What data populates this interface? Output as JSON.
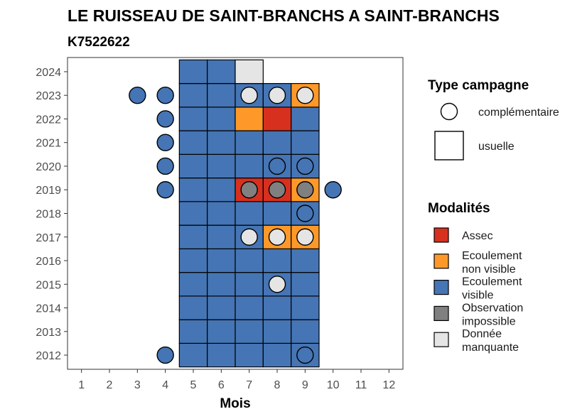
{
  "chart_data": {
    "type": "heatmap",
    "title": "LE RUISSEAU DE SAINT-BRANCHS A SAINT-BRANCHS",
    "subtitle": "K7522622",
    "xlabel": "Mois",
    "ylabel": "",
    "x_ticks": [
      1,
      2,
      3,
      4,
      5,
      6,
      7,
      8,
      9,
      10,
      11,
      12
    ],
    "y_ticks": [
      2012,
      2013,
      2014,
      2015,
      2016,
      2017,
      2018,
      2019,
      2020,
      2021,
      2022,
      2023,
      2024
    ],
    "xlim": [
      0.5,
      12.5
    ],
    "ylim": [
      2011.4,
      2024.6
    ],
    "grid": false,
    "legend_placement": "right",
    "modalites": [
      {
        "key": "assec",
        "label_lines": [
          "Assec"
        ],
        "color": "#d7301f"
      },
      {
        "key": "ecoul_nv",
        "label_lines": [
          "Ecoulement",
          "non visible"
        ],
        "color": "#fe9929"
      },
      {
        "key": "ecoul_v",
        "label_lines": [
          "Ecoulement",
          "visible"
        ],
        "color": "#4575b4"
      },
      {
        "key": "obs_imp",
        "label_lines": [
          "Observation",
          "impossible"
        ],
        "color": "#808080"
      },
      {
        "key": "manq",
        "label_lines": [
          "Donnée",
          "manquante"
        ],
        "color": "#e5e5e5"
      }
    ],
    "type_campagne": {
      "title": "Type campagne",
      "items": [
        {
          "key": "complementaire",
          "label": "complémentaire",
          "shape": "circle"
        },
        {
          "key": "usuelle",
          "label": "usuelle",
          "shape": "square"
        }
      ]
    },
    "usuelle": [
      {
        "year": 2012,
        "month": 5,
        "modalite": "ecoul_v"
      },
      {
        "year": 2012,
        "month": 6,
        "modalite": "ecoul_v"
      },
      {
        "year": 2012,
        "month": 7,
        "modalite": "ecoul_v"
      },
      {
        "year": 2012,
        "month": 8,
        "modalite": "ecoul_v"
      },
      {
        "year": 2012,
        "month": 9,
        "modalite": "ecoul_v"
      },
      {
        "year": 2013,
        "month": 5,
        "modalite": "ecoul_v"
      },
      {
        "year": 2013,
        "month": 6,
        "modalite": "ecoul_v"
      },
      {
        "year": 2013,
        "month": 7,
        "modalite": "ecoul_v"
      },
      {
        "year": 2013,
        "month": 8,
        "modalite": "ecoul_v"
      },
      {
        "year": 2013,
        "month": 9,
        "modalite": "ecoul_v"
      },
      {
        "year": 2014,
        "month": 5,
        "modalite": "ecoul_v"
      },
      {
        "year": 2014,
        "month": 6,
        "modalite": "ecoul_v"
      },
      {
        "year": 2014,
        "month": 7,
        "modalite": "ecoul_v"
      },
      {
        "year": 2014,
        "month": 8,
        "modalite": "ecoul_v"
      },
      {
        "year": 2014,
        "month": 9,
        "modalite": "ecoul_v"
      },
      {
        "year": 2015,
        "month": 5,
        "modalite": "ecoul_v"
      },
      {
        "year": 2015,
        "month": 6,
        "modalite": "ecoul_v"
      },
      {
        "year": 2015,
        "month": 7,
        "modalite": "ecoul_v"
      },
      {
        "year": 2015,
        "month": 8,
        "modalite": "ecoul_v"
      },
      {
        "year": 2015,
        "month": 9,
        "modalite": "ecoul_v"
      },
      {
        "year": 2016,
        "month": 5,
        "modalite": "ecoul_v"
      },
      {
        "year": 2016,
        "month": 6,
        "modalite": "ecoul_v"
      },
      {
        "year": 2016,
        "month": 7,
        "modalite": "ecoul_v"
      },
      {
        "year": 2016,
        "month": 8,
        "modalite": "ecoul_v"
      },
      {
        "year": 2016,
        "month": 9,
        "modalite": "ecoul_v"
      },
      {
        "year": 2017,
        "month": 5,
        "modalite": "ecoul_v"
      },
      {
        "year": 2017,
        "month": 6,
        "modalite": "ecoul_v"
      },
      {
        "year": 2017,
        "month": 7,
        "modalite": "ecoul_v"
      },
      {
        "year": 2017,
        "month": 8,
        "modalite": "ecoul_nv"
      },
      {
        "year": 2017,
        "month": 9,
        "modalite": "ecoul_nv"
      },
      {
        "year": 2018,
        "month": 5,
        "modalite": "ecoul_v"
      },
      {
        "year": 2018,
        "month": 6,
        "modalite": "ecoul_v"
      },
      {
        "year": 2018,
        "month": 7,
        "modalite": "ecoul_v"
      },
      {
        "year": 2018,
        "month": 8,
        "modalite": "ecoul_v"
      },
      {
        "year": 2018,
        "month": 9,
        "modalite": "ecoul_v"
      },
      {
        "year": 2019,
        "month": 5,
        "modalite": "ecoul_v"
      },
      {
        "year": 2019,
        "month": 6,
        "modalite": "ecoul_v"
      },
      {
        "year": 2019,
        "month": 7,
        "modalite": "assec"
      },
      {
        "year": 2019,
        "month": 8,
        "modalite": "assec"
      },
      {
        "year": 2019,
        "month": 9,
        "modalite": "ecoul_nv"
      },
      {
        "year": 2020,
        "month": 5,
        "modalite": "ecoul_v"
      },
      {
        "year": 2020,
        "month": 6,
        "modalite": "ecoul_v"
      },
      {
        "year": 2020,
        "month": 7,
        "modalite": "ecoul_v"
      },
      {
        "year": 2020,
        "month": 8,
        "modalite": "ecoul_v"
      },
      {
        "year": 2020,
        "month": 9,
        "modalite": "ecoul_v"
      },
      {
        "year": 2021,
        "month": 5,
        "modalite": "ecoul_v"
      },
      {
        "year": 2021,
        "month": 6,
        "modalite": "ecoul_v"
      },
      {
        "year": 2021,
        "month": 7,
        "modalite": "ecoul_v"
      },
      {
        "year": 2021,
        "month": 8,
        "modalite": "ecoul_v"
      },
      {
        "year": 2021,
        "month": 9,
        "modalite": "ecoul_v"
      },
      {
        "year": 2022,
        "month": 5,
        "modalite": "ecoul_v"
      },
      {
        "year": 2022,
        "month": 6,
        "modalite": "ecoul_v"
      },
      {
        "year": 2022,
        "month": 7,
        "modalite": "ecoul_nv"
      },
      {
        "year": 2022,
        "month": 8,
        "modalite": "assec"
      },
      {
        "year": 2022,
        "month": 9,
        "modalite": "ecoul_v"
      },
      {
        "year": 2023,
        "month": 5,
        "modalite": "ecoul_v"
      },
      {
        "year": 2023,
        "month": 6,
        "modalite": "ecoul_v"
      },
      {
        "year": 2023,
        "month": 7,
        "modalite": "ecoul_v"
      },
      {
        "year": 2023,
        "month": 8,
        "modalite": "ecoul_v"
      },
      {
        "year": 2023,
        "month": 9,
        "modalite": "ecoul_nv"
      },
      {
        "year": 2024,
        "month": 5,
        "modalite": "ecoul_v"
      },
      {
        "year": 2024,
        "month": 6,
        "modalite": "ecoul_v"
      },
      {
        "year": 2024,
        "month": 7,
        "modalite": "manq"
      }
    ],
    "complementaire": [
      {
        "year": 2012,
        "month": 4,
        "modalite": "ecoul_v"
      },
      {
        "year": 2012,
        "month": 9,
        "modalite": "ecoul_v"
      },
      {
        "year": 2015,
        "month": 8,
        "modalite": "manq"
      },
      {
        "year": 2017,
        "month": 7,
        "modalite": "manq"
      },
      {
        "year": 2017,
        "month": 8,
        "modalite": "manq"
      },
      {
        "year": 2017,
        "month": 9,
        "modalite": "manq"
      },
      {
        "year": 2018,
        "month": 9,
        "modalite": "ecoul_v"
      },
      {
        "year": 2019,
        "month": 4,
        "modalite": "ecoul_v"
      },
      {
        "year": 2019,
        "month": 7,
        "modalite": "obs_imp"
      },
      {
        "year": 2019,
        "month": 8,
        "modalite": "obs_imp"
      },
      {
        "year": 2019,
        "month": 9,
        "modalite": "obs_imp"
      },
      {
        "year": 2019,
        "month": 10,
        "modalite": "ecoul_v"
      },
      {
        "year": 2020,
        "month": 4,
        "modalite": "ecoul_v"
      },
      {
        "year": 2020,
        "month": 8,
        "modalite": "ecoul_v"
      },
      {
        "year": 2020,
        "month": 9,
        "modalite": "ecoul_v"
      },
      {
        "year": 2021,
        "month": 4,
        "modalite": "ecoul_v"
      },
      {
        "year": 2022,
        "month": 4,
        "modalite": "ecoul_v"
      },
      {
        "year": 2023,
        "month": 3,
        "modalite": "ecoul_v"
      },
      {
        "year": 2023,
        "month": 4,
        "modalite": "ecoul_v"
      },
      {
        "year": 2023,
        "month": 7,
        "modalite": "manq"
      },
      {
        "year": 2023,
        "month": 8,
        "modalite": "manq"
      },
      {
        "year": 2023,
        "month": 9,
        "modalite": "manq"
      }
    ]
  }
}
